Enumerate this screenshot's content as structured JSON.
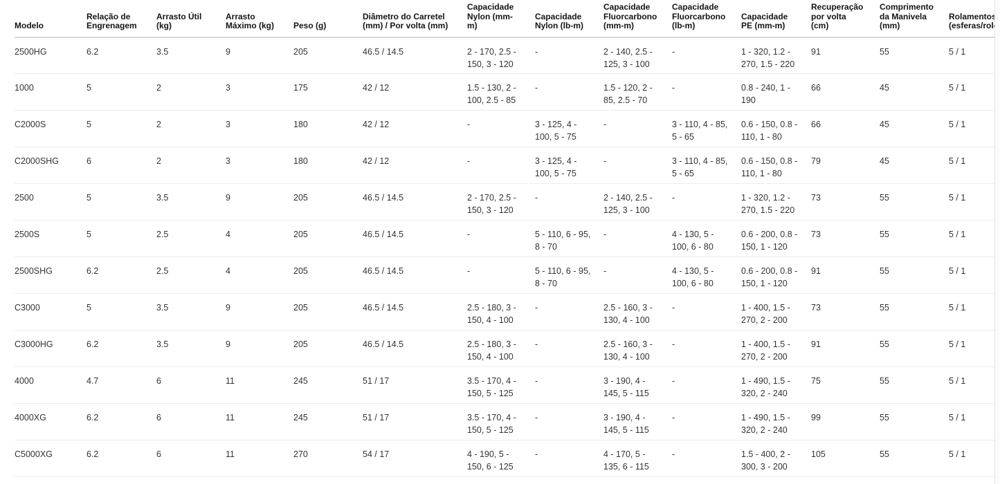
{
  "colors": {
    "header_border": "#d8d8d8",
    "row_border": "#ededed",
    "text": "#333333"
  },
  "table": {
    "columns": [
      "Modelo",
      "Relação de Engrenagem",
      "Arrasto Útil (kg)",
      "Arrasto Máximo (kg)",
      "Peso (g)",
      "Diâmetro do Carretel (mm) / Por volta (mm)",
      "Capacidade Nylon (mm-m)",
      "Capacidade Nylon (lb-m)",
      "Capacidade Fluorcarbono (mm-m)",
      "Capacidade Fluorcarbono (lb-m)",
      "Capacidade PE (mm-m)",
      "Recuperação por volta (cm)",
      "Comprimento da Manivela (mm)",
      "Rolamentos (esferas/rolos)"
    ],
    "rows": [
      [
        "2500HG",
        "6.2",
        "3.5",
        "9",
        "205",
        "46.5 / 14.5",
        "2 - 170, 2.5 - 150, 3 - 120",
        "-",
        "2 - 140, 2.5 - 125, 3 - 100",
        "-",
        "1 - 320, 1.2 - 270, 1.5 - 220",
        "91",
        "55",
        "5 / 1"
      ],
      [
        "1000",
        "5",
        "2",
        "3",
        "175",
        "42 / 12",
        "1.5 - 130, 2 - 100, 2.5 - 85",
        "-",
        "1.5 - 120, 2 - 85, 2.5 - 70",
        "-",
        "0.8 - 240, 1 - 190",
        "66",
        "45",
        "5 / 1"
      ],
      [
        "C2000S",
        "5",
        "2",
        "3",
        "180",
        "42 / 12",
        "-",
        "3 - 125, 4 - 100, 5 - 75",
        "-",
        "3 - 110, 4 - 85, 5 - 65",
        "0.6 - 150, 0.8 - 110, 1 - 80",
        "66",
        "45",
        "5 / 1"
      ],
      [
        "C2000SHG",
        "6",
        "2",
        "3",
        "180",
        "42 / 12",
        "-",
        "3 - 125, 4 - 100, 5 - 75",
        "-",
        "3 - 110, 4 - 85, 5 - 65",
        "0.6 - 150, 0.8 - 110, 1 - 80",
        "79",
        "45",
        "5 / 1"
      ],
      [
        "2500",
        "5",
        "3.5",
        "9",
        "205",
        "46.5 / 14.5",
        "2 - 170, 2.5 - 150, 3 - 120",
        "-",
        "2 - 140, 2.5 - 125, 3 - 100",
        "-",
        "1 - 320, 1.2 - 270, 1.5 - 220",
        "73",
        "55",
        "5 / 1"
      ],
      [
        "2500S",
        "5",
        "2.5",
        "4",
        "205",
        "46.5 / 14.5",
        "-",
        "5 - 110, 6 - 95, 8 - 70",
        "-",
        "4 - 130, 5 - 100, 6 - 80",
        "0.6 - 200, 0.8 - 150, 1 - 120",
        "73",
        "55",
        "5 / 1"
      ],
      [
        "2500SHG",
        "6.2",
        "2.5",
        "4",
        "205",
        "46.5 / 14.5",
        "-",
        "5 - 110, 6 - 95, 8 - 70",
        "-",
        "4 - 130, 5 - 100, 6 - 80",
        "0.6 - 200, 0.8 - 150, 1 - 120",
        "91",
        "55",
        "5 / 1"
      ],
      [
        "C3000",
        "5",
        "3.5",
        "9",
        "205",
        "46.5 / 14.5",
        "2.5 - 180, 3 - 150, 4 - 100",
        "-",
        "2.5 - 160, 3 - 130, 4 - 100",
        "-",
        "1 - 400, 1.5 - 270, 2 - 200",
        "73",
        "55",
        "5 / 1"
      ],
      [
        "C3000HG",
        "6.2",
        "3.5",
        "9",
        "205",
        "46.5 / 14.5",
        "2.5 - 180, 3 - 150, 4 - 100",
        "-",
        "2.5 - 160, 3 - 130, 4 - 100",
        "-",
        "1 - 400, 1.5 - 270, 2 - 200",
        "91",
        "55",
        "5 / 1"
      ],
      [
        "4000",
        "4.7",
        "6",
        "11",
        "245",
        "51 / 17",
        "3.5 - 170, 4 - 150, 5 - 125",
        "-",
        "3 - 190, 4 - 145, 5 - 115",
        "-",
        "1 - 490, 1.5 - 320, 2 - 240",
        "75",
        "55",
        "5 / 1"
      ],
      [
        "4000XG",
        "6.2",
        "6",
        "11",
        "245",
        "51 / 17",
        "3.5 - 170, 4 - 150, 5 - 125",
        "-",
        "3 - 190, 4 - 145, 5 - 115",
        "-",
        "1 - 490, 1.5 - 320, 2 - 240",
        "99",
        "55",
        "5 / 1"
      ],
      [
        "C5000XG",
        "6.2",
        "6",
        "11",
        "270",
        "54 / 17",
        "4 - 190, 5 - 150, 6 - 125",
        "-",
        "4 - 170, 5 - 135, 6 - 115",
        "-",
        "1.5 - 400, 2 - 300, 3 - 200",
        "105",
        "55",
        "5 / 1"
      ]
    ]
  }
}
